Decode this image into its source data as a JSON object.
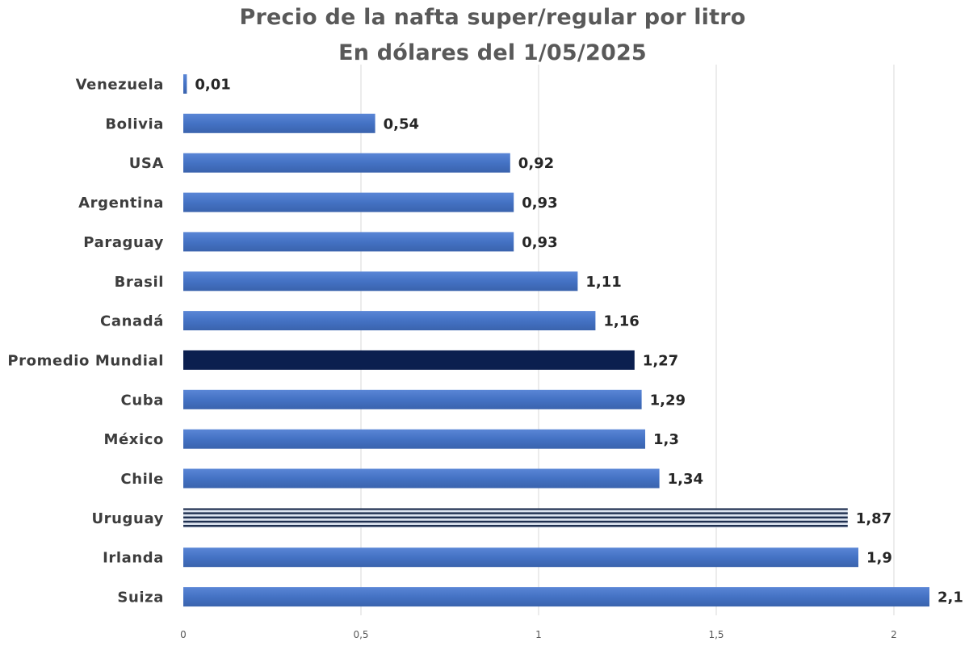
{
  "chart_data": {
    "type": "bar",
    "orientation": "horizontal",
    "title": "Precio de la nafta super/regular por litro",
    "subtitle": "En dólares del 1/05/2025",
    "categories": [
      "Venezuela",
      "Bolivia",
      "USA",
      "Argentina",
      "Paraguay",
      "Brasil",
      "Canadá",
      "Promedio Mundial",
      "Cuba",
      "México",
      "Chile",
      "Uruguay",
      "Irlanda",
      "Suiza"
    ],
    "values": [
      0.01,
      0.54,
      0.92,
      0.93,
      0.93,
      1.11,
      1.16,
      1.27,
      1.29,
      1.3,
      1.34,
      1.87,
      1.9,
      2.1
    ],
    "data_labels": [
      "0,01",
      "0,54",
      "0,92",
      "0,93",
      "0,93",
      "1,11",
      "1,16",
      "1,27",
      "1,29",
      "1,3",
      "1,34",
      "1,87",
      "1,9",
      "2,1"
    ],
    "xlim": [
      0,
      2.2
    ],
    "x_ticks": [
      0,
      0.5,
      1,
      1.5,
      2
    ],
    "x_tick_labels": [
      "0",
      "0,5",
      "1",
      "1,5",
      "2"
    ],
    "grid": "vertical",
    "legend": "none",
    "colors": {
      "bar": "#4472c4",
      "bar_highlight": "#0b1f4f",
      "bar_stripe_dark": "#1f3050",
      "bar_stripe_light": "#dfe6f2",
      "gridline": "#d9d9d9"
    },
    "highlight": {
      "Promedio Mundial": "solid-dark",
      "Uruguay": "striped"
    }
  }
}
